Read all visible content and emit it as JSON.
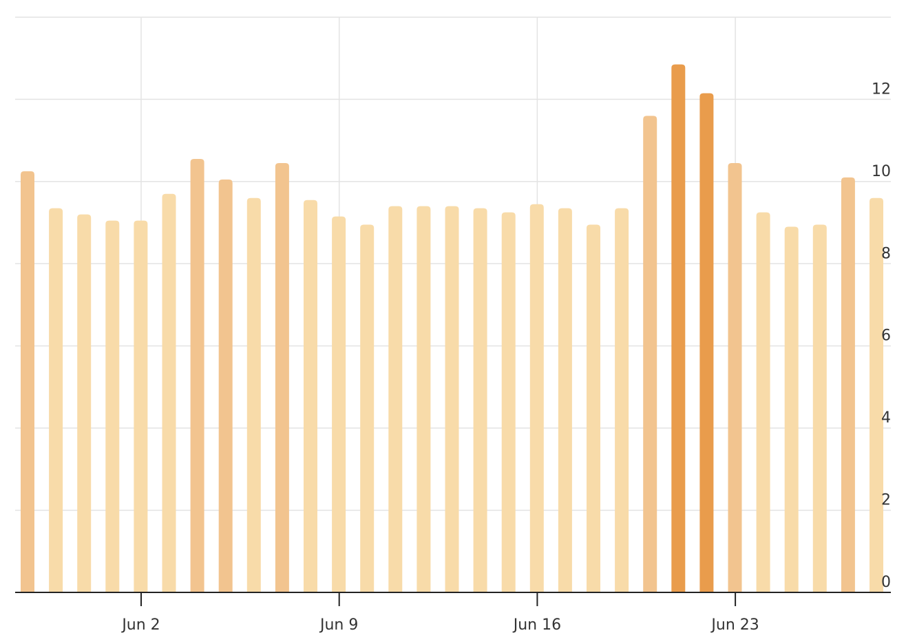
{
  "chart_data": {
    "type": "bar",
    "title": "",
    "xlabel": "",
    "ylabel": "",
    "ylim": [
      0,
      14
    ],
    "y_ticks": [
      0,
      2,
      4,
      6,
      8,
      10,
      12
    ],
    "y_tick_labels": [
      "0",
      "2",
      "4",
      "6",
      "8",
      "10",
      "12"
    ],
    "y_axis_side": "right",
    "x_tick_labels": [
      "Jun 2",
      "Jun 9",
      "Jun 16",
      "Jun 23"
    ],
    "x_tick_positions": [
      "Jun 2",
      "Jun 9",
      "Jun 16",
      "Jun 23"
    ],
    "x_range": [
      "May 28",
      "Jun 28"
    ],
    "grid": {
      "horizontal": true,
      "vertical": true
    },
    "categories": [
      "May 29",
      "May 30",
      "May 31",
      "Jun 1",
      "Jun 2",
      "Jun 3",
      "Jun 4",
      "Jun 5",
      "Jun 6",
      "Jun 7",
      "Jun 8",
      "Jun 9",
      "Jun 10",
      "Jun 11",
      "Jun 12",
      "Jun 13",
      "Jun 14",
      "Jun 15",
      "Jun 16",
      "Jun 17",
      "Jun 18",
      "Jun 19",
      "Jun 20",
      "Jun 21",
      "Jun 22",
      "Jun 23",
      "Jun 24",
      "Jun 25",
      "Jun 26",
      "Jun 27",
      "Jun 28"
    ],
    "values": [
      10.25,
      9.35,
      9.2,
      9.05,
      9.05,
      9.7,
      10.55,
      10.05,
      9.6,
      10.45,
      9.55,
      9.15,
      8.95,
      9.4,
      9.4,
      9.4,
      9.35,
      9.25,
      9.45,
      9.35,
      8.95,
      9.35,
      11.6,
      12.85,
      12.15,
      10.45,
      9.25,
      8.9,
      8.95,
      10.1,
      9.6
    ],
    "colors": {
      "low": "#f8dba9",
      "mid": "#f2c48f",
      "high": "#e99c4c"
    }
  }
}
